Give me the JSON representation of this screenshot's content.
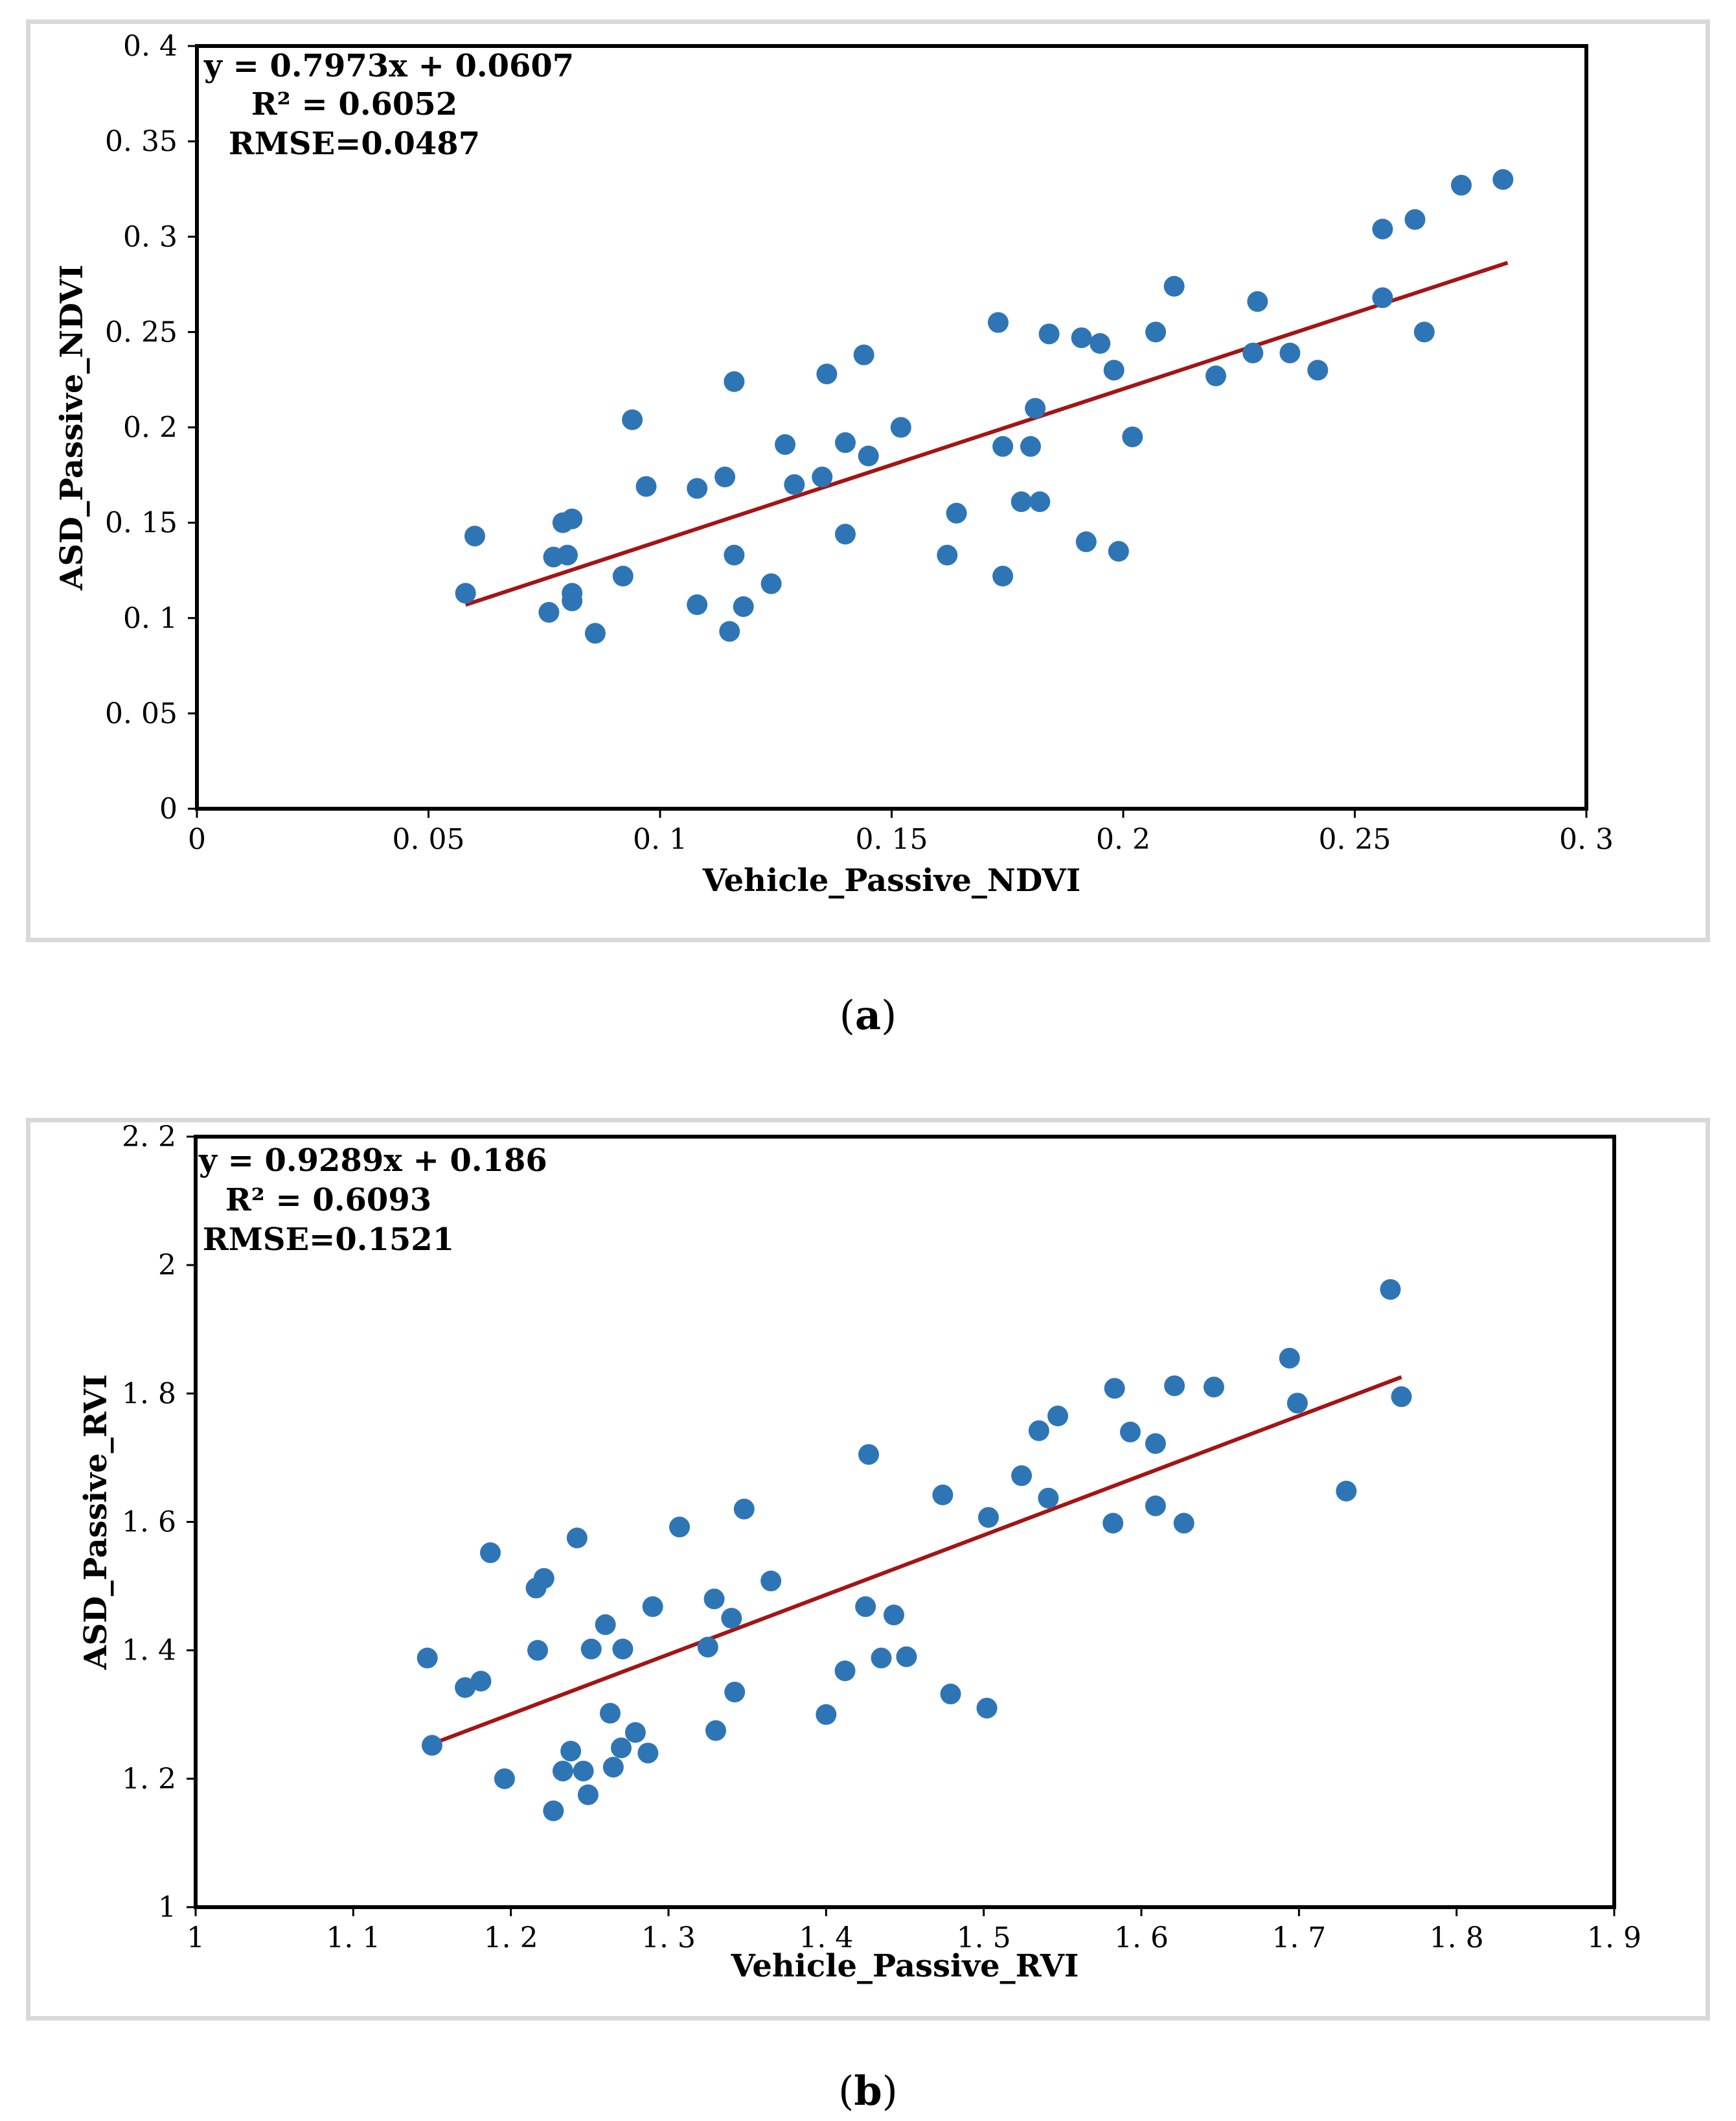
{
  "chart_data": [
    {
      "id": "a",
      "type": "scatter",
      "title": "",
      "xlabel": "Vehicle_Passive_NDVI",
      "ylabel": "ASD_Passive_NDVI",
      "xlim": [
        0,
        0.3
      ],
      "ylim": [
        0,
        0.4
      ],
      "xticks": [
        0,
        0.05,
        0.1,
        0.15,
        0.2,
        0.25,
        0.3
      ],
      "xtick_labels": [
        "0",
        "0. 05",
        "0. 1",
        "0. 15",
        "0. 2",
        "0. 25",
        "0. 3"
      ],
      "yticks": [
        0,
        0.05,
        0.1,
        0.15,
        0.2,
        0.25,
        0.3,
        0.35,
        0.4
      ],
      "ytick_labels": [
        "0",
        "0. 05",
        "0. 1",
        "0. 15",
        "0. 2",
        "0. 25",
        "0. 3",
        "0. 35",
        "0. 4"
      ],
      "annotations": [
        "y = 0.7973x + 0.0607",
        "R² = 0.6052",
        "RMSE=0.0487"
      ],
      "fit": {
        "slope": 0.7973,
        "intercept": 0.0607,
        "x_range": [
          0.058,
          0.283
        ]
      },
      "marker_color": "#2e75b6",
      "line_color": "#a31515",
      "points": [
        [
          0.058,
          0.113
        ],
        [
          0.06,
          0.143
        ],
        [
          0.076,
          0.103
        ],
        [
          0.077,
          0.132
        ],
        [
          0.079,
          0.15
        ],
        [
          0.08,
          0.133
        ],
        [
          0.081,
          0.113
        ],
        [
          0.081,
          0.109
        ],
        [
          0.081,
          0.152
        ],
        [
          0.086,
          0.092
        ],
        [
          0.092,
          0.122
        ],
        [
          0.094,
          0.204
        ],
        [
          0.097,
          0.169
        ],
        [
          0.108,
          0.107
        ],
        [
          0.108,
          0.168
        ],
        [
          0.114,
          0.174
        ],
        [
          0.115,
          0.093
        ],
        [
          0.116,
          0.133
        ],
        [
          0.116,
          0.224
        ],
        [
          0.118,
          0.106
        ],
        [
          0.124,
          0.118
        ],
        [
          0.127,
          0.191
        ],
        [
          0.129,
          0.17
        ],
        [
          0.135,
          0.174
        ],
        [
          0.136,
          0.228
        ],
        [
          0.14,
          0.144
        ],
        [
          0.14,
          0.192
        ],
        [
          0.144,
          0.238
        ],
        [
          0.145,
          0.185
        ],
        [
          0.152,
          0.2
        ],
        [
          0.162,
          0.133
        ],
        [
          0.164,
          0.155
        ],
        [
          0.173,
          0.255
        ],
        [
          0.174,
          0.19
        ],
        [
          0.174,
          0.122
        ],
        [
          0.178,
          0.161
        ],
        [
          0.18,
          0.19
        ],
        [
          0.181,
          0.21
        ],
        [
          0.182,
          0.161
        ],
        [
          0.184,
          0.249
        ],
        [
          0.191,
          0.247
        ],
        [
          0.192,
          0.14
        ],
        [
          0.195,
          0.244
        ],
        [
          0.198,
          0.23
        ],
        [
          0.199,
          0.135
        ],
        [
          0.202,
          0.195
        ],
        [
          0.207,
          0.25
        ],
        [
          0.211,
          0.274
        ],
        [
          0.22,
          0.227
        ],
        [
          0.228,
          0.239
        ],
        [
          0.229,
          0.266
        ],
        [
          0.236,
          0.239
        ],
        [
          0.242,
          0.23
        ],
        [
          0.256,
          0.304
        ],
        [
          0.256,
          0.268
        ],
        [
          0.263,
          0.309
        ],
        [
          0.265,
          0.25
        ],
        [
          0.273,
          0.327
        ],
        [
          0.282,
          0.33
        ]
      ]
    },
    {
      "id": "b",
      "type": "scatter",
      "title": "",
      "xlabel": "Vehicle_Passive_RVI",
      "ylabel": "ASD_Passive_RVI",
      "xlim": [
        1,
        1.9
      ],
      "ylim": [
        1,
        2.2
      ],
      "xticks": [
        1,
        1.1,
        1.2,
        1.3,
        1.4,
        1.5,
        1.6,
        1.7,
        1.8,
        1.9
      ],
      "xtick_labels": [
        "1",
        "1. 1",
        "1. 2",
        "1. 3",
        "1. 4",
        "1. 5",
        "1. 6",
        "1. 7",
        "1. 8",
        "1. 9"
      ],
      "yticks": [
        1,
        1.2,
        1.4,
        1.6,
        1.8,
        2,
        2.2
      ],
      "ytick_labels": [
        "1",
        "1. 2",
        "1. 4",
        "1. 6",
        "1. 8",
        "2",
        "2. 2"
      ],
      "annotations": [
        "y = 0.9289x + 0.186",
        "R² = 0.6093",
        "RMSE=0.1521"
      ],
      "fit": {
        "slope": 0.9289,
        "intercept": 0.186,
        "x_range": [
          1.15,
          1.765
        ]
      },
      "marker_color": "#2e75b6",
      "line_color": "#a31515",
      "points": [
        [
          1.147,
          1.388
        ],
        [
          1.15,
          1.252
        ],
        [
          1.171,
          1.342
        ],
        [
          1.181,
          1.352
        ],
        [
          1.187,
          1.552
        ],
        [
          1.196,
          1.2
        ],
        [
          1.216,
          1.497
        ],
        [
          1.217,
          1.4
        ],
        [
          1.221,
          1.512
        ],
        [
          1.227,
          1.15
        ],
        [
          1.233,
          1.212
        ],
        [
          1.238,
          1.243
        ],
        [
          1.242,
          1.575
        ],
        [
          1.246,
          1.212
        ],
        [
          1.249,
          1.175
        ],
        [
          1.251,
          1.402
        ],
        [
          1.26,
          1.44
        ],
        [
          1.263,
          1.302
        ],
        [
          1.265,
          1.218
        ],
        [
          1.27,
          1.248
        ],
        [
          1.271,
          1.402
        ],
        [
          1.279,
          1.272
        ],
        [
          1.287,
          1.24
        ],
        [
          1.29,
          1.468
        ],
        [
          1.307,
          1.592
        ],
        [
          1.325,
          1.405
        ],
        [
          1.329,
          1.48
        ],
        [
          1.33,
          1.275
        ],
        [
          1.34,
          1.45
        ],
        [
          1.342,
          1.335
        ],
        [
          1.348,
          1.62
        ],
        [
          1.365,
          1.508
        ],
        [
          1.4,
          1.3
        ],
        [
          1.412,
          1.368
        ],
        [
          1.425,
          1.468
        ],
        [
          1.427,
          1.705
        ],
        [
          1.435,
          1.388
        ],
        [
          1.443,
          1.455
        ],
        [
          1.451,
          1.39
        ],
        [
          1.474,
          1.642
        ],
        [
          1.479,
          1.332
        ],
        [
          1.502,
          1.31
        ],
        [
          1.503,
          1.607
        ],
        [
          1.524,
          1.672
        ],
        [
          1.535,
          1.742
        ],
        [
          1.541,
          1.637
        ],
        [
          1.547,
          1.765
        ],
        [
          1.582,
          1.598
        ],
        [
          1.583,
          1.808
        ],
        [
          1.593,
          1.74
        ],
        [
          1.609,
          1.722
        ],
        [
          1.609,
          1.625
        ],
        [
          1.621,
          1.812
        ],
        [
          1.627,
          1.598
        ],
        [
          1.646,
          1.81
        ],
        [
          1.694,
          1.855
        ],
        [
          1.699,
          1.785
        ],
        [
          1.73,
          1.648
        ],
        [
          1.758,
          1.962
        ],
        [
          1.765,
          1.795
        ]
      ]
    }
  ],
  "captions": [
    {
      "open": "(",
      "label": "a",
      "close": ")"
    },
    {
      "open": "(",
      "label": "b",
      "close": ")"
    }
  ]
}
